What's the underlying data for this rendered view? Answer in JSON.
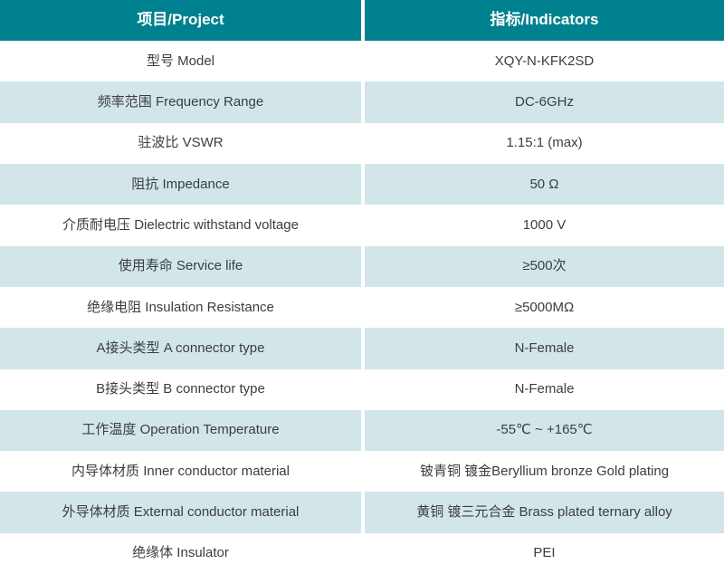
{
  "table": {
    "header": {
      "project": "项目/Project",
      "indicators": "指标/Indicators"
    },
    "rows": [
      {
        "project": "型号 Model",
        "indicator": "XQY-N-KFK2SD"
      },
      {
        "project": "频率范围 Frequency Range",
        "indicator": "DC-6GHz"
      },
      {
        "project": "驻波比 VSWR",
        "indicator": "1.15:1 (max)"
      },
      {
        "project": "阻抗 Impedance",
        "indicator": "50 Ω"
      },
      {
        "project": "介质耐电压 Dielectric withstand voltage",
        "indicator": "1000 V"
      },
      {
        "project": "使用寿命 Service life",
        "indicator": "≥500次"
      },
      {
        "project": "绝缘电阻 Insulation Resistance",
        "indicator": "≥5000MΩ"
      },
      {
        "project": "A接头类型 A connector type",
        "indicator": "N-Female"
      },
      {
        "project": "B接头类型 B connector type",
        "indicator": "N-Female"
      },
      {
        "project": "工作温度 Operation Temperature",
        "indicator": "-55℃ ~ +165℃"
      },
      {
        "project": "内导体材质 Inner conductor material",
        "indicator": "铍青铜 镀金Beryllium bronze Gold plating"
      },
      {
        "project": "外导体材质 External conductor material",
        "indicator": "黄铜 镀三元合金 Brass plated  ternary alloy"
      },
      {
        "project": "绝缘体 Insulator",
        "indicator": "PEI"
      }
    ],
    "colors": {
      "header_bg": "#00818F",
      "header_text": "#FFFFFF",
      "row_bg": "#FFFFFF",
      "row_alt_bg": "#D2E6EA",
      "body_text": "#3D3D3D"
    }
  }
}
